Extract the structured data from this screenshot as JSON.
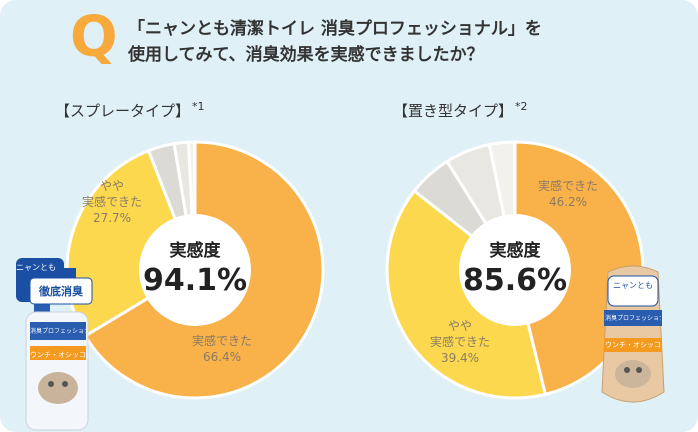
{
  "question": {
    "mark": "Q",
    "line1": "「ニャンとも清潔トイレ 消臭プロフェッショナル」を",
    "line2": "使用してみて、消臭効果を実感できましたか？"
  },
  "colors": {
    "orange": "#f9b149",
    "yellow": "#fbd84e",
    "gray": "#dcdad4",
    "light": "#e8e7e2",
    "bg": "#dff0f7",
    "qmark": "#f7a93b"
  },
  "chart_data": [
    {
      "type": "pie",
      "title": "【スプレータイプ】",
      "note": "*1",
      "center_label": "実感度",
      "center_value": "94.1%",
      "slices": [
        {
          "name": "実感できた",
          "value": 66.4,
          "label": "66.4%",
          "color": "#f9b149"
        },
        {
          "name": "やや実感できた",
          "value": 27.7,
          "label": "27.7%",
          "color": "#fbd84e"
        },
        {
          "name": "",
          "value": 3.3,
          "color": "#dcdad4"
        },
        {
          "name": "",
          "value": 1.8,
          "color": "#e8e7e2"
        },
        {
          "name": "",
          "value": 0.8,
          "color": "#f2f1ec"
        }
      ]
    },
    {
      "type": "pie",
      "title": "【置き型タイプ】",
      "note": "*2",
      "center_label": "実感度",
      "center_value": "85.6%",
      "slices": [
        {
          "name": "実感できた",
          "value": 46.2,
          "label": "46.2%",
          "color": "#f9b149"
        },
        {
          "name": "やや実感できた",
          "value": 39.4,
          "label": "39.4%",
          "color": "#fbd84e"
        },
        {
          "name": "",
          "value": 5.5,
          "color": "#dcdad4"
        },
        {
          "name": "",
          "value": 5.7,
          "color": "#e8e7e2"
        },
        {
          "name": "",
          "value": 3.2,
          "color": "#f2f1ec"
        }
      ]
    }
  ],
  "products": {
    "spray": {
      "brand": "ニャンとも",
      "badge": "徹底消臭",
      "line1": "消臭プロフェッショナル",
      "line2": "ウンチ・オシッコ"
    },
    "placed": {
      "brand": "ニャンとも",
      "line1": "消臭プロフェッショナル",
      "line2": "ウンチ・オシッコ"
    }
  }
}
